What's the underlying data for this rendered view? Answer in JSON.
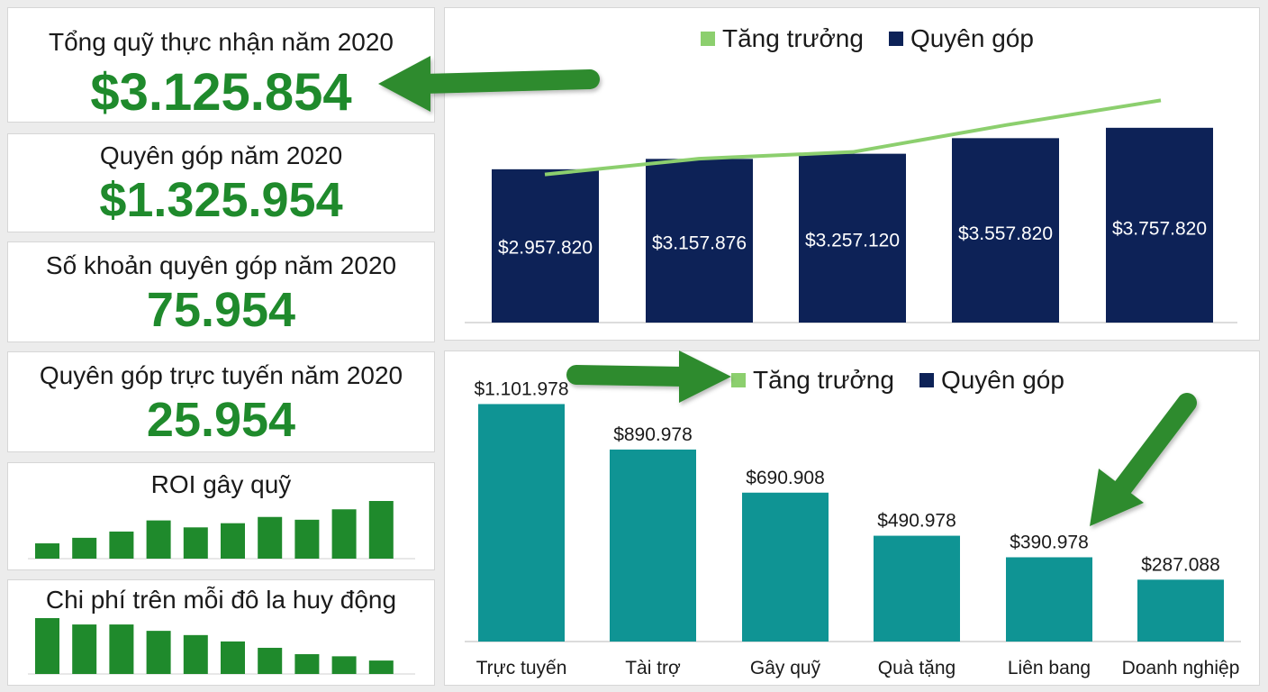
{
  "colors": {
    "accent_green": "#1f8a2c",
    "navy": "#0d2257",
    "light_green": "#8ccf6e",
    "teal": "#0f9494",
    "arrow_green": "#2e8b2e"
  },
  "kpis": [
    {
      "label": "Tổng quỹ thực nhận năm 2020",
      "value": "$3.125.854"
    },
    {
      "label": "Quyên góp năm 2020",
      "value": "$1.325.954"
    },
    {
      "label": "Số khoản quyên góp năm 2020",
      "value": "75.954"
    },
    {
      "label": "Quyên góp trực tuyến năm 2020",
      "value": "25.954"
    }
  ],
  "chart_data": [
    {
      "type": "bar",
      "legend": [
        "Tăng trưởng",
        "Quyên góp"
      ],
      "series": [
        {
          "name": "Quyên góp",
          "values": [
            2957820,
            3157876,
            3257120,
            3557820,
            3757820
          ],
          "labels": [
            "$2.957.820",
            "$3.157.876",
            "$3.257.120",
            "$3.557.820",
            "$3.757.820"
          ]
        },
        {
          "name": "Tăng trưởng",
          "type": "line",
          "values": [
            3.3,
            3.65,
            3.8,
            4.4,
            4.95
          ]
        }
      ]
    },
    {
      "type": "bar",
      "legend": [
        "Tăng trưởng",
        "Quyên góp"
      ],
      "categories": [
        "Trực tuyến",
        "Tài trợ",
        "Gây quỹ",
        "Quà tặng",
        "Liên bang",
        "Doanh nghiệp"
      ],
      "values": [
        1101978,
        890978,
        690908,
        490978,
        390978,
        287088
      ],
      "labels": [
        "$1.101.978",
        "$890.978",
        "$690.908",
        "$490.978",
        "$390.978",
        "$287.088"
      ]
    },
    {
      "type": "bar",
      "title": "ROI gây quỹ",
      "values": [
        2.2,
        3.0,
        3.9,
        5.5,
        4.5,
        5.1,
        6.0,
        5.6,
        7.1,
        8.3
      ]
    },
    {
      "type": "bar",
      "title": "Chi phí trên mỗi đô la huy động",
      "values": [
        7.9,
        7.0,
        7.0,
        6.1,
        5.5,
        4.6,
        3.7,
        2.8,
        2.5,
        1.9
      ]
    }
  ]
}
